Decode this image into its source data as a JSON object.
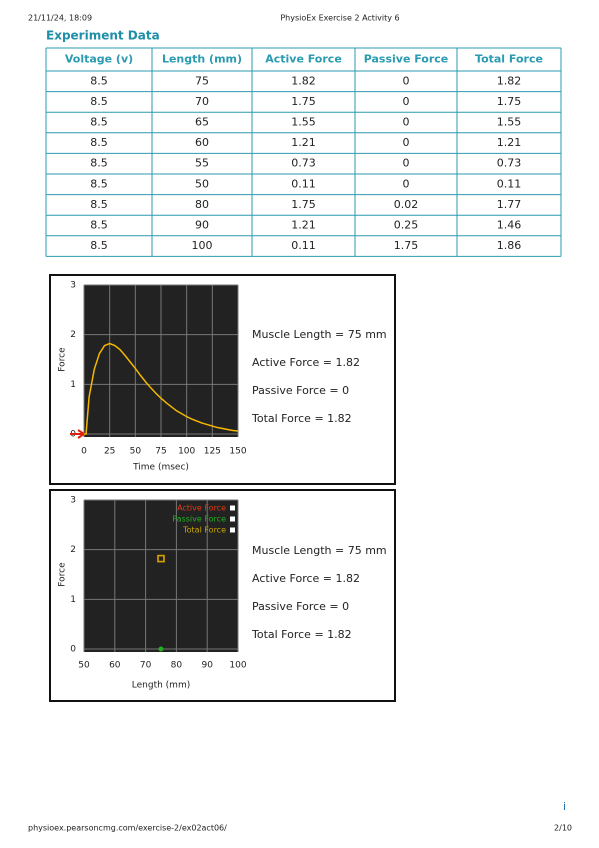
{
  "header": {
    "datetime": "21/11/24, 18:09",
    "title": "PhysioEx Exercise 2 Activity 6"
  },
  "section_title": "Experiment Data",
  "table": {
    "columns": [
      "Voltage (v)",
      "Length (mm)",
      "Active Force",
      "Passive Force",
      "Total Force"
    ],
    "rows": [
      [
        8.5,
        75,
        1.82,
        0,
        1.82
      ],
      [
        8.5,
        70,
        1.75,
        0,
        1.75
      ],
      [
        8.5,
        65,
        1.55,
        0,
        1.55
      ],
      [
        8.5,
        60,
        1.21,
        0,
        1.21
      ],
      [
        8.5,
        55,
        0.73,
        0,
        0.73
      ],
      [
        8.5,
        50,
        0.11,
        0,
        0.11
      ],
      [
        8.5,
        80,
        1.75,
        0.02,
        1.77
      ],
      [
        8.5,
        90,
        1.21,
        0.25,
        1.46
      ],
      [
        8.5,
        100,
        0.11,
        1.75,
        1.86
      ]
    ]
  },
  "chart_data": [
    {
      "type": "line",
      "xlabel": "Time (msec)",
      "ylabel": "Force",
      "x": [
        0,
        2,
        5,
        10,
        15,
        20,
        25,
        30,
        35,
        40,
        45,
        50,
        55,
        60,
        65,
        70,
        75,
        80,
        85,
        90,
        95,
        100,
        105,
        110,
        115,
        120,
        125,
        130,
        135,
        140,
        145,
        150
      ],
      "series": [
        {
          "color": "#f5b800",
          "values": [
            0,
            0,
            0.75,
            1.3,
            1.62,
            1.78,
            1.82,
            1.78,
            1.7,
            1.58,
            1.45,
            1.32,
            1.18,
            1.05,
            0.93,
            0.82,
            0.72,
            0.63,
            0.55,
            0.47,
            0.41,
            0.35,
            0.3,
            0.26,
            0.22,
            0.19,
            0.16,
            0.13,
            0.11,
            0.09,
            0.07,
            0.06
          ]
        }
      ],
      "xlim": [
        0,
        150
      ],
      "xticks": [
        0,
        25,
        50,
        75,
        100,
        125,
        150
      ],
      "ylim": [
        0,
        3
      ],
      "yticks": [
        0,
        1,
        2,
        3
      ],
      "grid": true,
      "annotations": [
        "Muscle Length = 75 mm",
        "Active Force = 1.82",
        "Passive Force = 0",
        "Total Force = 1.82"
      ]
    },
    {
      "type": "scatter",
      "xlabel": "Length (mm)",
      "ylabel": "Force",
      "series": [
        {
          "name": "Active Force",
          "color": "#e83a10",
          "marker": "square",
          "x": [
            75
          ],
          "values": [
            1.82
          ]
        },
        {
          "name": "Passive Force",
          "color": "#22b022",
          "marker": "circle",
          "x": [
            75
          ],
          "values": [
            0
          ]
        },
        {
          "name": "Total Force",
          "color": "#c8a800",
          "marker": "square",
          "x": [
            75
          ],
          "values": [
            1.82
          ]
        }
      ],
      "xlim": [
        50,
        100
      ],
      "xticks": [
        50,
        60,
        70,
        80,
        90,
        100
      ],
      "ylim": [
        0,
        3
      ],
      "yticks": [
        0,
        1,
        2,
        3
      ],
      "grid": true,
      "legend": "top-right",
      "annotations": [
        "Muscle Length = 75 mm",
        "Active Force = 1.82",
        "Passive Force = 0",
        "Total Force = 1.82"
      ]
    }
  ],
  "footer": {
    "url": "physioex.pearsoncmg.com/exercise-2/ex02act06/",
    "page": "2/10",
    "info": "i"
  }
}
